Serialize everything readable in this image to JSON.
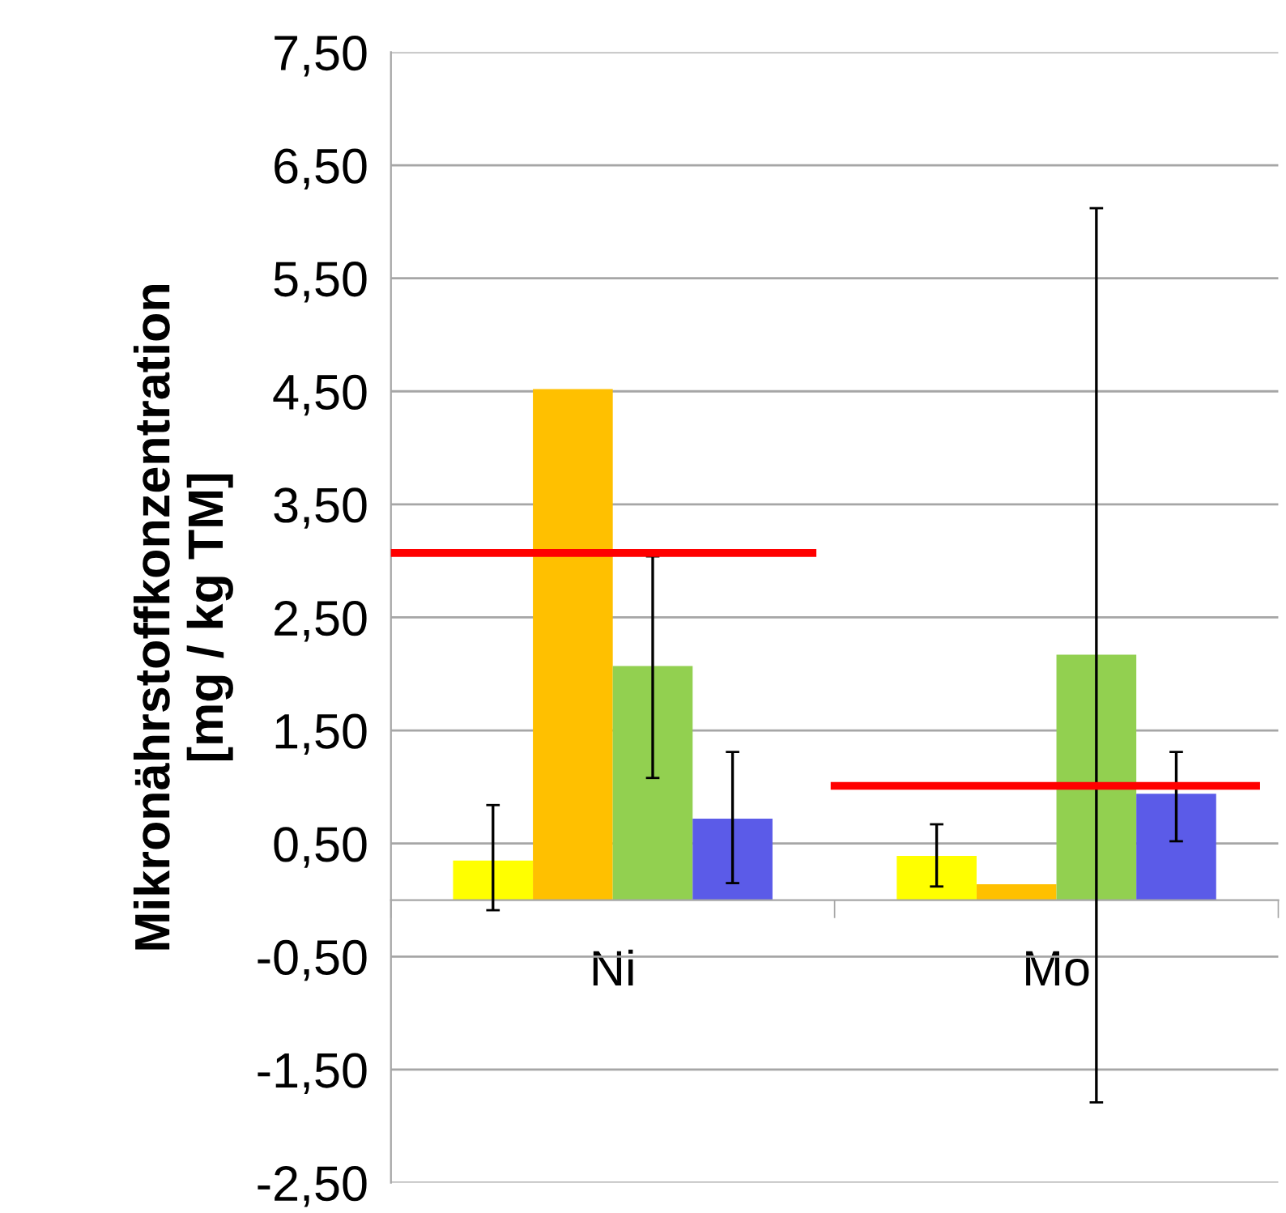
{
  "chart_data": {
    "type": "bar",
    "ylabel": "Mikronährstoffkonzentration\n[mg / kg TM]",
    "categories": [
      "Ni",
      "Mo"
    ],
    "series": [
      {
        "color": "#ffff00",
        "values": [
          0.35,
          0.39
        ],
        "errors": [
          [
            -0.09,
            0.84
          ],
          [
            0.12,
            0.67
          ]
        ]
      },
      {
        "color": "#ffc000",
        "values": [
          4.52,
          0.14
        ],
        "errors": [
          null,
          null
        ]
      },
      {
        "color": "#92d050",
        "values": [
          2.07,
          2.17
        ],
        "errors": [
          [
            1.08,
            3.04
          ],
          [
            -1.79,
            6.12
          ]
        ]
      },
      {
        "color": "#5b5be8",
        "values": [
          0.72,
          0.94
        ],
        "errors": [
          [
            0.15,
            1.31
          ],
          [
            0.52,
            1.31
          ]
        ]
      }
    ],
    "ref_lines": [
      {
        "axis": "y",
        "value": 3.07,
        "color": "#ff0000"
      },
      {
        "axis": "y",
        "value": 1.01,
        "color": "#ff0000"
      }
    ],
    "ylim": [
      -2.5,
      7.5
    ],
    "yticks": [
      {
        "value": -2.5,
        "label": "-2,50"
      },
      {
        "value": -1.5,
        "label": "-1,50"
      },
      {
        "value": -0.5,
        "label": "-0,50"
      },
      {
        "value": 0.5,
        "label": "0,50"
      },
      {
        "value": 1.5,
        "label": "1,50"
      },
      {
        "value": 2.5,
        "label": "2,50"
      },
      {
        "value": 3.5,
        "label": "3,50"
      },
      {
        "value": 4.5,
        "label": "4,50"
      },
      {
        "value": 5.5,
        "label": "5,50"
      },
      {
        "value": 6.5,
        "label": "6,50"
      },
      {
        "value": 7.5,
        "label": "7,50"
      }
    ],
    "grid": "y",
    "legend": false
  }
}
